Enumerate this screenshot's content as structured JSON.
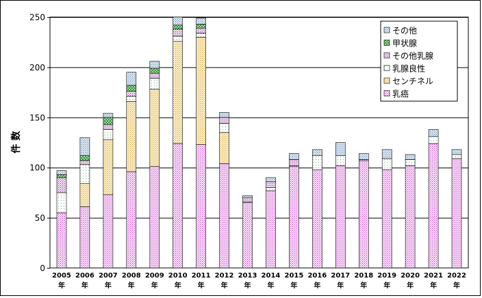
{
  "chart_data": {
    "type": "bar",
    "stacked": true,
    "ylabel": "件 数",
    "ylim": [
      0,
      250
    ],
    "yticks": [
      0,
      50,
      100,
      150,
      200,
      250
    ],
    "grid": true,
    "legend_position": "top-right",
    "categories": [
      "2005",
      "2006",
      "2007",
      "2008",
      "2009",
      "2010",
      "2011",
      "2012",
      "2013",
      "2014",
      "2015",
      "2016",
      "2017",
      "2018",
      "2019",
      "2020",
      "2021",
      "2022"
    ],
    "category_suffix": "年",
    "series": [
      {
        "name": "乳癌",
        "color": "#f0a8f0",
        "values": [
          55,
          61,
          73,
          96,
          101,
          124,
          123,
          104,
          65,
          77,
          101,
          98,
          102,
          107,
          98,
          102,
          124,
          109
        ]
      },
      {
        "name": "センチネル",
        "color": "#f8e0a8",
        "values": [
          0,
          23,
          55,
          70,
          77,
          102,
          107,
          31,
          0,
          0,
          0,
          0,
          0,
          0,
          0,
          0,
          0,
          0
        ]
      },
      {
        "name": "乳腺良性",
        "color": "#e8f8e8",
        "values": [
          20,
          19,
          10,
          5,
          11,
          5,
          4,
          9,
          1,
          3,
          1,
          14,
          10,
          1,
          11,
          6,
          7,
          4
        ]
      },
      {
        "name": "その他乳腺",
        "color": "#e8b8e8",
        "values": [
          15,
          4,
          5,
          5,
          5,
          7,
          5,
          6,
          4,
          6,
          6,
          0,
          0,
          0,
          0,
          0,
          0,
          0
        ]
      },
      {
        "name": "甲状腺",
        "color": "#78c078",
        "values": [
          3,
          5,
          7,
          6,
          5,
          4,
          4,
          0,
          0,
          0,
          0,
          0,
          0,
          0,
          0,
          0,
          0,
          0
        ]
      },
      {
        "name": "その他",
        "color": "#a8c8e8",
        "values": [
          4,
          18,
          4,
          13,
          7,
          8,
          6,
          5,
          2,
          4,
          6,
          6,
          13,
          6,
          9,
          5,
          7,
          5
        ]
      }
    ],
    "legend_order": [
      "その他",
      "甲状腺",
      "その他乳腺",
      "乳腺良性",
      "センチネル",
      "乳癌"
    ]
  }
}
